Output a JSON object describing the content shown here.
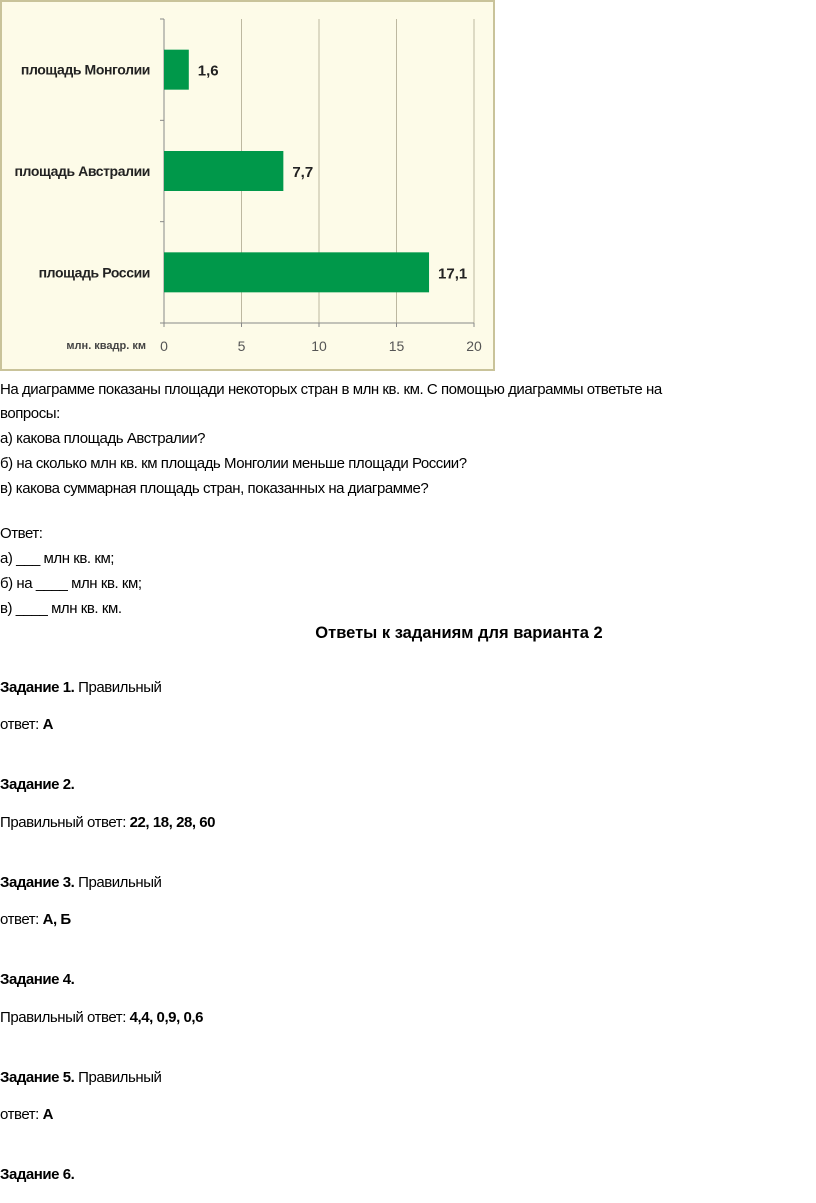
{
  "chart_data": {
    "type": "bar",
    "orientation": "horizontal",
    "categories": [
      "площадь Монголии",
      "площадь Австралии",
      "площадь России"
    ],
    "values": [
      1.6,
      7.7,
      17.1
    ],
    "value_labels": [
      "1,6",
      "7,7",
      "17,1"
    ],
    "xlabel": "млн. квадр. км",
    "xlim": [
      0,
      20
    ],
    "xticks": [
      "0",
      "5",
      "10",
      "15",
      "20"
    ],
    "grid": true,
    "colors": {
      "bar": "#00984a",
      "background": "#fdfbe8",
      "border": "#c9c39a",
      "grid": "#bdb8a0"
    }
  },
  "question": {
    "intro_line1": "На диаграмме показаны площади некоторых стран в млн кв. км. С помощью диаграммы ответьте на",
    "intro_line2": "вопросы:",
    "q_a": "а) какова площадь Австралии?",
    "q_b": "б) на сколько млн кв. км площадь Монголии меньше площади России?",
    "q_c": "в) какова суммарная площадь стран, показанных на диаграмме?",
    "answer_label": "Ответ:",
    "ans_a": "а) ___ млн кв. км;",
    "ans_b": "б) на ____ млн кв. км;",
    "ans_c": "в) ____ млн кв. км."
  },
  "answers": {
    "title": "Ответы к заданиям для варианта 2",
    "tasks": [
      {
        "label": "Задание 1.",
        "text": " Правильный",
        "answer_prefix": "ответ: ",
        "answer": "А"
      },
      {
        "label": "Задание 2.",
        "answer_prefix": "Правильный ответ: ",
        "answer": "22, 18, 28, 60"
      },
      {
        "label": "Задание 3.",
        "text": " Правильный",
        "answer_prefix": "ответ: ",
        "answer": "А, Б"
      },
      {
        "label": "Задание 4.",
        "answer_prefix": "Правильный ответ: ",
        "answer": "4,4, 0,9, 0,6"
      },
      {
        "label": "Задание 5.",
        "text": " Правильный",
        "answer_prefix": "ответ: ",
        "answer": "А"
      },
      {
        "label": "Задание 6."
      }
    ]
  }
}
